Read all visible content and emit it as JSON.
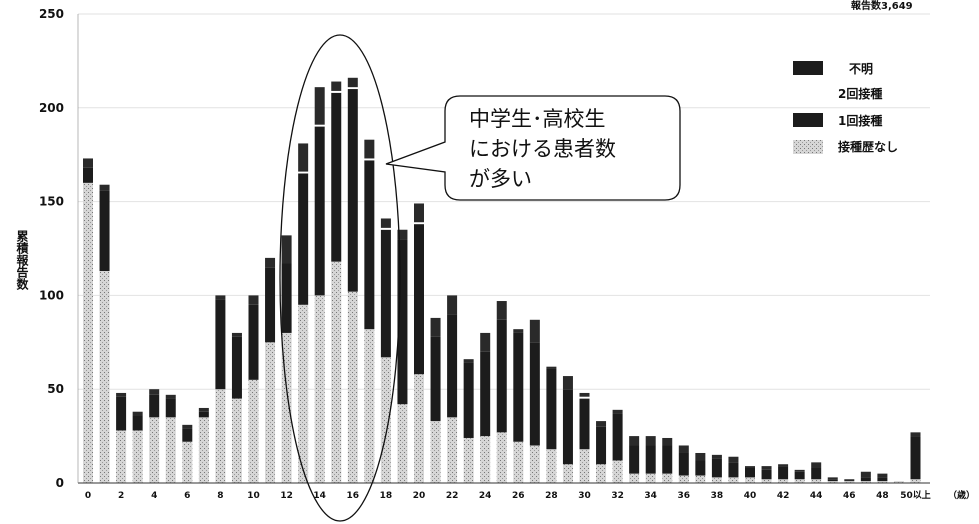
{
  "report_count": "報告数3,649",
  "callout": {
    "line1": "中学生･高校生",
    "line2": "における患者数",
    "line3": "が多い"
  },
  "chart_data": {
    "type": "bar",
    "stacked": true,
    "ylabel": "累積報告数",
    "xlabel_unit": "（歳）",
    "ylim": [
      0,
      250
    ],
    "yticks": [
      0,
      50,
      100,
      150,
      200,
      250
    ],
    "x_tick_labels": [
      "0",
      "2",
      "4",
      "6",
      "8",
      "10",
      "12",
      "14",
      "16",
      "18",
      "20",
      "22",
      "24",
      "26",
      "28",
      "30",
      "32",
      "34",
      "36",
      "38",
      "40",
      "42",
      "44",
      "46",
      "48",
      "50以上"
    ],
    "categories": [
      "0",
      "1",
      "2",
      "3",
      "4",
      "5",
      "6",
      "7",
      "8",
      "9",
      "10",
      "11",
      "12",
      "13",
      "14",
      "15",
      "16",
      "17",
      "18",
      "19",
      "20",
      "21",
      "22",
      "23",
      "24",
      "25",
      "26",
      "27",
      "28",
      "29",
      "30",
      "31",
      "32",
      "33",
      "34",
      "35",
      "36",
      "37",
      "38",
      "39",
      "40",
      "41",
      "42",
      "43",
      "44",
      "45",
      "46",
      "47",
      "48",
      "49",
      "50以上"
    ],
    "series": [
      {
        "name": "接種歴なし",
        "color": "#c8c8c8",
        "values": [
          160,
          113,
          28,
          28,
          35,
          35,
          22,
          35,
          50,
          45,
          55,
          75,
          80,
          95,
          100,
          118,
          102,
          82,
          67,
          42,
          58,
          33,
          35,
          24,
          25,
          27,
          22,
          20,
          18,
          10,
          18,
          10,
          12,
          5,
          5,
          5,
          4,
          4,
          3,
          3,
          3,
          2,
          2,
          2,
          2,
          1,
          1,
          1,
          1,
          1,
          2
        ]
      },
      {
        "name": "1回接種",
        "color": "#1c1c1c",
        "values": [
          8,
          43,
          18,
          8,
          12,
          10,
          7,
          3,
          48,
          33,
          40,
          40,
          37,
          70,
          90,
          90,
          108,
          90,
          68,
          88,
          80,
          45,
          55,
          40,
          45,
          60,
          58,
          55,
          43,
          40,
          27,
          20,
          25,
          15,
          15,
          15,
          12,
          8,
          10,
          8,
          5,
          5,
          7,
          4,
          6,
          1,
          0,
          2,
          2,
          0,
          23
        ]
      },
      {
        "name": "2回接種",
        "color": "#ffffff",
        "values": [
          0,
          0,
          0,
          0,
          0,
          0,
          0,
          0,
          0,
          0,
          0,
          0,
          0,
          1,
          1,
          1,
          1,
          1,
          1,
          0,
          1,
          0,
          0,
          0,
          0,
          0,
          0,
          0,
          0,
          0,
          1,
          0,
          0,
          0,
          0,
          0,
          0,
          0,
          0,
          0,
          0,
          0,
          0,
          0,
          0,
          0,
          0,
          0,
          0,
          0,
          0
        ]
      },
      {
        "name": "不明",
        "color": "#2a2a2a",
        "values": [
          5,
          3,
          2,
          2,
          3,
          2,
          2,
          2,
          2,
          2,
          5,
          5,
          15,
          15,
          20,
          5,
          5,
          10,
          5,
          5,
          10,
          10,
          10,
          2,
          10,
          10,
          2,
          12,
          1,
          7,
          2,
          3,
          2,
          5,
          5,
          4,
          4,
          4,
          2,
          3,
          1,
          2,
          1,
          1,
          3,
          1,
          1,
          3,
          2,
          0,
          2
        ]
      }
    ],
    "legend": [
      {
        "name": "不明",
        "color": "#1c1c1c"
      },
      {
        "name": "2回接種",
        "color": "#ffffff"
      },
      {
        "name": "1回接種",
        "color": "#1c1c1c"
      },
      {
        "name": "接種歴なし",
        "color": "#bdbdbd"
      }
    ],
    "legend_position": "top-right",
    "grid": true
  }
}
